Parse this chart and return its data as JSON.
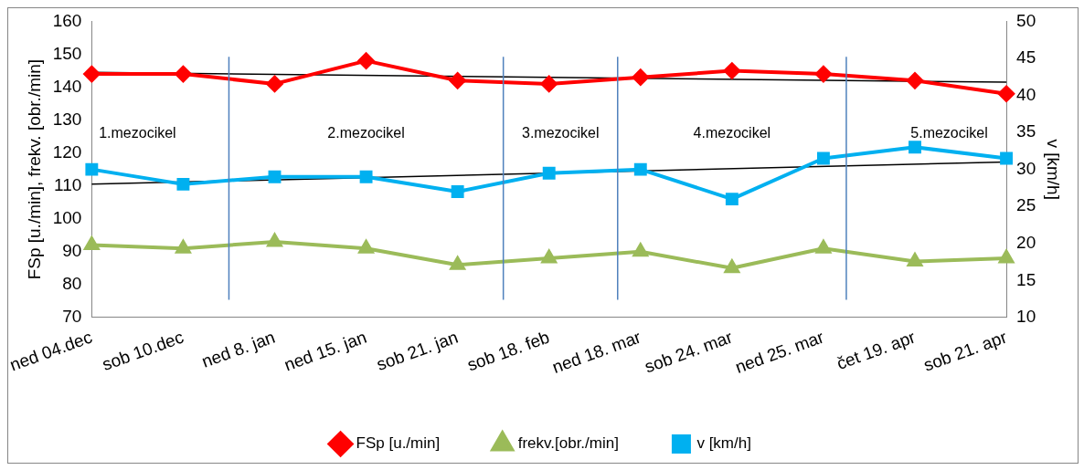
{
  "chart_data": {
    "type": "line",
    "categories": [
      "ned 04.dec",
      "sob 10.dec",
      "ned 8. jan",
      "ned 15. jan",
      "sob 21. jan",
      "sob 18. feb",
      "ned 18. mar",
      "sob 24. mar",
      "ned 25. mar",
      "čet 19. apr",
      "sob 21. apr"
    ],
    "series": [
      {
        "name": "FSp [u./min]",
        "color": "#ff0000",
        "marker": "diamond",
        "values": [
          144,
          144,
          141,
          148,
          142,
          141,
          143,
          145,
          144,
          142,
          138
        ]
      },
      {
        "name": "frekv.[obr./min]",
        "color": "#9bbb59",
        "marker": "triangle",
        "values": [
          92,
          91,
          93,
          91,
          86,
          88,
          90,
          85,
          91,
          87,
          88
        ]
      },
      {
        "name": "v [km/h]",
        "color": "#00b0f0",
        "marker": "square",
        "axis": "y2",
        "values": [
          30,
          28,
          29,
          29,
          27,
          29.5,
          30,
          26,
          31.5,
          33,
          31.5
        ]
      },
      {
        "color": "#000000",
        "marker": "none",
        "values": [
          144.5,
          null,
          null,
          null,
          null,
          null,
          null,
          null,
          null,
          null,
          141.5
        ]
      },
      {
        "color": "#000000",
        "marker": "none",
        "axis": "y2",
        "values": [
          28,
          null,
          null,
          null,
          null,
          null,
          null,
          null,
          null,
          null,
          31
        ]
      }
    ],
    "ylabel": "FSp [u./min], frekv. [obr./min]",
    "y2label": "v [km/h]",
    "ylim": [
      70,
      160
    ],
    "yticks": [
      70,
      80,
      90,
      100,
      110,
      120,
      130,
      140,
      150,
      160
    ],
    "y2lim": [
      10,
      50
    ],
    "y2ticks": [
      10,
      15,
      20,
      25,
      30,
      35,
      40,
      45,
      50
    ],
    "annotations": [
      "1.mezocikel",
      "2.mezocikel",
      "3.mezocikel",
      "4.mezocikel",
      "5.mezocikel"
    ],
    "grid": false,
    "legend": "bottom"
  }
}
